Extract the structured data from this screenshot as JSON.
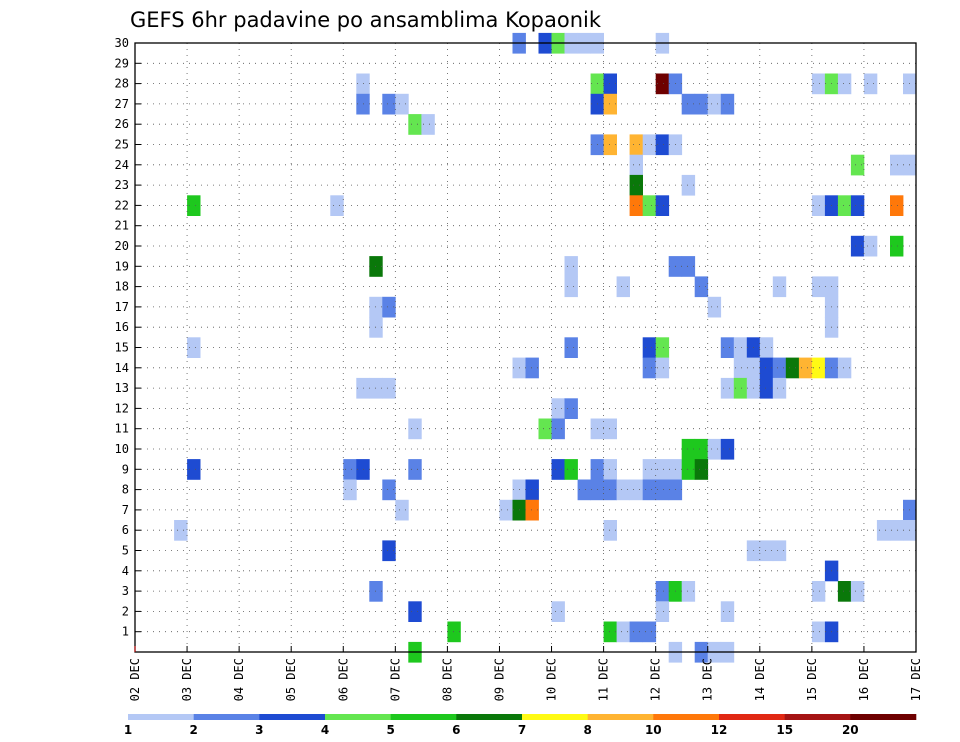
{
  "chart_data": {
    "type": "heatmap",
    "title": "GEFS 6hr padavine po ansamblima Kopaonik",
    "xlabel": "",
    "ylabel": "",
    "x_tick_labels": [
      "02 DEC",
      "03 DEC",
      "04 DEC",
      "05 DEC",
      "06 DEC",
      "07 DEC",
      "08 DEC",
      "09 DEC",
      "10 DEC",
      "11 DEC",
      "12 DEC",
      "13 DEC",
      "14 DEC",
      "15 DEC",
      "16 DEC",
      "17 DEC"
    ],
    "y_tick_labels": [
      "1",
      "2",
      "3",
      "4",
      "5",
      "6",
      "7",
      "8",
      "9",
      "10",
      "11",
      "12",
      "13",
      "14",
      "15",
      "16",
      "17",
      "18",
      "19",
      "20",
      "21",
      "22",
      "23",
      "24",
      "25",
      "26",
      "27",
      "28",
      "29",
      "30"
    ],
    "grid": true,
    "colorbar": {
      "placement": "bottom",
      "labels": [
        "1",
        "2",
        "3",
        "4",
        "5",
        "6",
        "7",
        "8",
        "10",
        "12",
        "15",
        "20"
      ],
      "colors": [
        "#b4c8f5",
        "#5a82e6",
        "#1e4bd2",
        "#64e650",
        "#1ec81e",
        "#0a780a",
        "#fffa14",
        "#ffb432",
        "#ff780a",
        "#e12814",
        "#a51414",
        "#6e0000"
      ]
    },
    "cells": [
      {
        "m": 30,
        "d": 9.25,
        "c": 2
      },
      {
        "m": 30,
        "d": 9.75,
        "c": 3
      },
      {
        "m": 30,
        "d": 10.0,
        "c": 4
      },
      {
        "m": 30,
        "d": 10.25,
        "c": 1
      },
      {
        "m": 30,
        "d": 10.5,
        "c": 1
      },
      {
        "m": 30,
        "d": 10.75,
        "c": 1
      },
      {
        "m": 30,
        "d": 12.0,
        "c": 1
      },
      {
        "m": 28,
        "d": 6.25,
        "c": 1
      },
      {
        "m": 28,
        "d": 10.75,
        "c": 4
      },
      {
        "m": 28,
        "d": 11.0,
        "c": 3
      },
      {
        "m": 28,
        "d": 12.0,
        "c": 12
      },
      {
        "m": 28,
        "d": 12.25,
        "c": 2
      },
      {
        "m": 28,
        "d": 15.0,
        "c": 1
      },
      {
        "m": 28,
        "d": 15.25,
        "c": 4
      },
      {
        "m": 28,
        "d": 15.5,
        "c": 1
      },
      {
        "m": 28,
        "d": 16.0,
        "c": 1
      },
      {
        "m": 28,
        "d": 16.75,
        "c": 1
      },
      {
        "m": 27,
        "d": 6.25,
        "c": 2
      },
      {
        "m": 27,
        "d": 6.75,
        "c": 2
      },
      {
        "m": 27,
        "d": 7.0,
        "c": 1
      },
      {
        "m": 27,
        "d": 10.75,
        "c": 3
      },
      {
        "m": 27,
        "d": 11.0,
        "c": 8
      },
      {
        "m": 27,
        "d": 12.5,
        "c": 2
      },
      {
        "m": 27,
        "d": 12.75,
        "c": 2
      },
      {
        "m": 27,
        "d": 13.0,
        "c": 1
      },
      {
        "m": 27,
        "d": 13.25,
        "c": 2
      },
      {
        "m": 26,
        "d": 7.25,
        "c": 4
      },
      {
        "m": 26,
        "d": 7.5,
        "c": 1
      },
      {
        "m": 25,
        "d": 10.75,
        "c": 2
      },
      {
        "m": 25,
        "d": 11.0,
        "c": 8
      },
      {
        "m": 25,
        "d": 11.5,
        "c": 8
      },
      {
        "m": 25,
        "d": 11.75,
        "c": 1
      },
      {
        "m": 25,
        "d": 12.0,
        "c": 3
      },
      {
        "m": 25,
        "d": 12.25,
        "c": 1
      },
      {
        "m": 24,
        "d": 11.5,
        "c": 1
      },
      {
        "m": 24,
        "d": 15.75,
        "c": 4
      },
      {
        "m": 24,
        "d": 16.5,
        "c": 1
      },
      {
        "m": 24,
        "d": 16.75,
        "c": 1
      },
      {
        "m": 23,
        "d": 11.5,
        "c": 6
      },
      {
        "m": 23,
        "d": 12.5,
        "c": 1
      },
      {
        "m": 22,
        "d": 3.0,
        "c": 5
      },
      {
        "m": 22,
        "d": 5.75,
        "c": 1
      },
      {
        "m": 22,
        "d": 11.5,
        "c": 9
      },
      {
        "m": 22,
        "d": 11.75,
        "c": 4
      },
      {
        "m": 22,
        "d": 12.0,
        "c": 3
      },
      {
        "m": 22,
        "d": 15.0,
        "c": 1
      },
      {
        "m": 22,
        "d": 15.25,
        "c": 3
      },
      {
        "m": 22,
        "d": 15.5,
        "c": 4
      },
      {
        "m": 22,
        "d": 15.75,
        "c": 3
      },
      {
        "m": 22,
        "d": 16.5,
        "c": 9
      },
      {
        "m": 20,
        "d": 15.75,
        "c": 3
      },
      {
        "m": 20,
        "d": 16.0,
        "c": 1
      },
      {
        "m": 20,
        "d": 16.5,
        "c": 5
      },
      {
        "m": 19,
        "d": 6.5,
        "c": 6
      },
      {
        "m": 19,
        "d": 10.25,
        "c": 1
      },
      {
        "m": 19,
        "d": 12.25,
        "c": 2
      },
      {
        "m": 19,
        "d": 12.5,
        "c": 2
      },
      {
        "m": 18,
        "d": 10.25,
        "c": 1
      },
      {
        "m": 18,
        "d": 11.25,
        "c": 1
      },
      {
        "m": 18,
        "d": 12.75,
        "c": 2
      },
      {
        "m": 18,
        "d": 14.25,
        "c": 1
      },
      {
        "m": 18,
        "d": 15.0,
        "c": 1
      },
      {
        "m": 18,
        "d": 15.25,
        "c": 1
      },
      {
        "m": 17,
        "d": 6.5,
        "c": 1
      },
      {
        "m": 17,
        "d": 6.75,
        "c": 2
      },
      {
        "m": 17,
        "d": 13.0,
        "c": 1
      },
      {
        "m": 17,
        "d": 15.25,
        "c": 1
      },
      {
        "m": 16,
        "d": 6.5,
        "c": 1
      },
      {
        "m": 16,
        "d": 15.25,
        "c": 1
      },
      {
        "m": 15,
        "d": 3.0,
        "c": 1
      },
      {
        "m": 15,
        "d": 10.25,
        "c": 2
      },
      {
        "m": 15,
        "d": 11.75,
        "c": 3
      },
      {
        "m": 15,
        "d": 12.0,
        "c": 4
      },
      {
        "m": 15,
        "d": 13.25,
        "c": 2
      },
      {
        "m": 15,
        "d": 13.5,
        "c": 1
      },
      {
        "m": 15,
        "d": 13.75,
        "c": 3
      },
      {
        "m": 15,
        "d": 14.0,
        "c": 1
      },
      {
        "m": 14,
        "d": 9.25,
        "c": 1
      },
      {
        "m": 14,
        "d": 9.5,
        "c": 2
      },
      {
        "m": 14,
        "d": 11.75,
        "c": 2
      },
      {
        "m": 14,
        "d": 12.0,
        "c": 1
      },
      {
        "m": 14,
        "d": 13.5,
        "c": 1
      },
      {
        "m": 14,
        "d": 13.75,
        "c": 1
      },
      {
        "m": 14,
        "d": 14.0,
        "c": 3
      },
      {
        "m": 14,
        "d": 14.25,
        "c": 2
      },
      {
        "m": 14,
        "d": 14.5,
        "c": 6
      },
      {
        "m": 14,
        "d": 14.75,
        "c": 8
      },
      {
        "m": 14,
        "d": 15.0,
        "c": 7
      },
      {
        "m": 14,
        "d": 15.25,
        "c": 2
      },
      {
        "m": 14,
        "d": 15.5,
        "c": 1
      },
      {
        "m": 13,
        "d": 6.25,
        "c": 1
      },
      {
        "m": 13,
        "d": 6.5,
        "c": 1
      },
      {
        "m": 13,
        "d": 6.75,
        "c": 1
      },
      {
        "m": 13,
        "d": 13.25,
        "c": 1
      },
      {
        "m": 13,
        "d": 13.5,
        "c": 4
      },
      {
        "m": 13,
        "d": 13.75,
        "c": 1
      },
      {
        "m": 13,
        "d": 14.0,
        "c": 3
      },
      {
        "m": 13,
        "d": 14.25,
        "c": 1
      },
      {
        "m": 12,
        "d": 10.0,
        "c": 1
      },
      {
        "m": 12,
        "d": 10.25,
        "c": 2
      },
      {
        "m": 11,
        "d": 7.25,
        "c": 1
      },
      {
        "m": 11,
        "d": 9.75,
        "c": 4
      },
      {
        "m": 11,
        "d": 10.0,
        "c": 2
      },
      {
        "m": 11,
        "d": 10.75,
        "c": 1
      },
      {
        "m": 11,
        "d": 11.0,
        "c": 1
      },
      {
        "m": 10,
        "d": 12.5,
        "c": 5
      },
      {
        "m": 10,
        "d": 12.75,
        "c": 5
      },
      {
        "m": 10,
        "d": 13.0,
        "c": 1
      },
      {
        "m": 10,
        "d": 13.25,
        "c": 3
      },
      {
        "m": 9,
        "d": 3.0,
        "c": 3
      },
      {
        "m": 9,
        "d": 6.0,
        "c": 2
      },
      {
        "m": 9,
        "d": 6.25,
        "c": 3
      },
      {
        "m": 9,
        "d": 7.25,
        "c": 2
      },
      {
        "m": 9,
        "d": 10.0,
        "c": 3
      },
      {
        "m": 9,
        "d": 10.25,
        "c": 5
      },
      {
        "m": 9,
        "d": 10.75,
        "c": 2
      },
      {
        "m": 9,
        "d": 11.0,
        "c": 1
      },
      {
        "m": 9,
        "d": 11.75,
        "c": 1
      },
      {
        "m": 9,
        "d": 12.0,
        "c": 1
      },
      {
        "m": 9,
        "d": 12.25,
        "c": 1
      },
      {
        "m": 9,
        "d": 12.5,
        "c": 5
      },
      {
        "m": 9,
        "d": 12.75,
        "c": 6
      },
      {
        "m": 8,
        "d": 6.0,
        "c": 1
      },
      {
        "m": 8,
        "d": 6.75,
        "c": 2
      },
      {
        "m": 8,
        "d": 9.25,
        "c": 1
      },
      {
        "m": 8,
        "d": 9.5,
        "c": 3
      },
      {
        "m": 8,
        "d": 10.5,
        "c": 2
      },
      {
        "m": 8,
        "d": 10.75,
        "c": 2
      },
      {
        "m": 8,
        "d": 11.0,
        "c": 2
      },
      {
        "m": 8,
        "d": 11.25,
        "c": 1
      },
      {
        "m": 8,
        "d": 11.5,
        "c": 1
      },
      {
        "m": 8,
        "d": 11.75,
        "c": 2
      },
      {
        "m": 8,
        "d": 12.0,
        "c": 2
      },
      {
        "m": 8,
        "d": 12.25,
        "c": 2
      },
      {
        "m": 7,
        "d": 7.0,
        "c": 1
      },
      {
        "m": 7,
        "d": 9.0,
        "c": 1
      },
      {
        "m": 7,
        "d": 9.25,
        "c": 6
      },
      {
        "m": 7,
        "d": 9.5,
        "c": 9
      },
      {
        "m": 7,
        "d": 16.75,
        "c": 2
      },
      {
        "m": 6,
        "d": 2.75,
        "c": 1
      },
      {
        "m": 6,
        "d": 11.0,
        "c": 1
      },
      {
        "m": 6,
        "d": 16.25,
        "c": 1
      },
      {
        "m": 6,
        "d": 16.5,
        "c": 1
      },
      {
        "m": 6,
        "d": 16.75,
        "c": 1
      },
      {
        "m": 5,
        "d": 6.75,
        "c": 3
      },
      {
        "m": 5,
        "d": 13.75,
        "c": 1
      },
      {
        "m": 5,
        "d": 14.0,
        "c": 1
      },
      {
        "m": 5,
        "d": 14.25,
        "c": 1
      },
      {
        "m": 4,
        "d": 15.25,
        "c": 3
      },
      {
        "m": 3,
        "d": 6.5,
        "c": 2
      },
      {
        "m": 3,
        "d": 12.0,
        "c": 2
      },
      {
        "m": 3,
        "d": 12.25,
        "c": 5
      },
      {
        "m": 3,
        "d": 12.5,
        "c": 1
      },
      {
        "m": 3,
        "d": 15.0,
        "c": 1
      },
      {
        "m": 3,
        "d": 15.5,
        "c": 6
      },
      {
        "m": 3,
        "d": 15.75,
        "c": 1
      },
      {
        "m": 2,
        "d": 7.25,
        "c": 3
      },
      {
        "m": 2,
        "d": 10.0,
        "c": 1
      },
      {
        "m": 2,
        "d": 12.0,
        "c": 1
      },
      {
        "m": 2,
        "d": 13.25,
        "c": 1
      },
      {
        "m": 1,
        "d": 8.0,
        "c": 5
      },
      {
        "m": 1,
        "d": 11.0,
        "c": 5
      },
      {
        "m": 1,
        "d": 11.25,
        "c": 1
      },
      {
        "m": 1,
        "d": 11.5,
        "c": 2
      },
      {
        "m": 1,
        "d": 11.75,
        "c": 2
      },
      {
        "m": 1,
        "d": 15.0,
        "c": 1
      },
      {
        "m": 1,
        "d": 15.25,
        "c": 3
      },
      {
        "m": 0,
        "d": 7.25,
        "c": 5
      },
      {
        "m": 0,
        "d": 12.25,
        "c": 1
      },
      {
        "m": 0,
        "d": 12.75,
        "c": 2
      },
      {
        "m": 0,
        "d": 13.0,
        "c": 1
      },
      {
        "m": 0,
        "d": 13.25,
        "c": 1
      }
    ]
  }
}
